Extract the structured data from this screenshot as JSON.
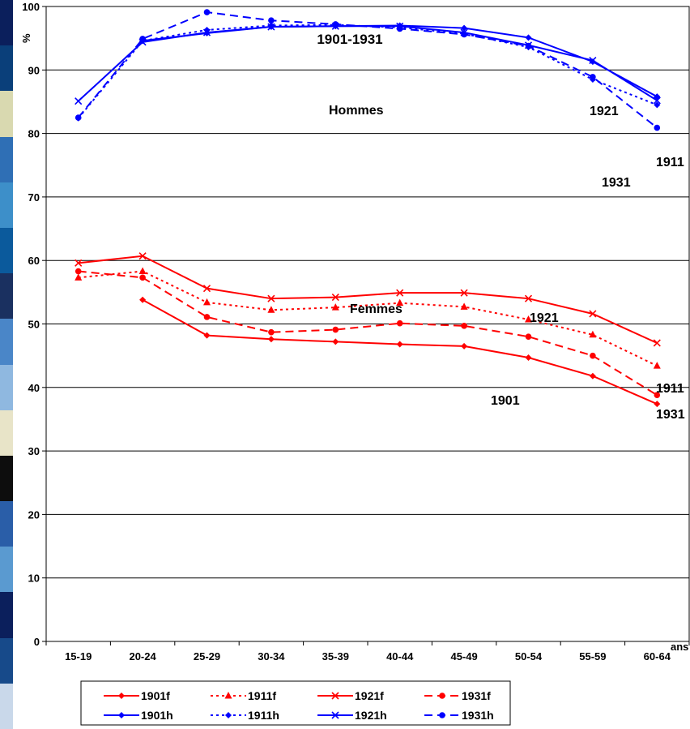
{
  "chart_data": {
    "type": "line",
    "title": "1901-1931",
    "ylabel": "%",
    "xlabel": "ans",
    "ylim": [
      0,
      100
    ],
    "yticks": [
      0,
      10,
      20,
      30,
      40,
      50,
      60,
      70,
      80,
      90,
      100
    ],
    "grid": true,
    "legend_position": "bottom",
    "categories": [
      "15-19",
      "20-24",
      "25-29",
      "30-34",
      "35-39",
      "40-44",
      "45-49",
      "50-54",
      "55-59",
      "60-64"
    ],
    "annotations": {
      "hommes": "Hommes",
      "femmes": "Femmes",
      "h1921": "1921",
      "h1911": "1911",
      "h1931": "1931",
      "f1921": "1921",
      "f1911": "1911",
      "f1931": "1931",
      "f1901": "1901"
    },
    "series": [
      {
        "name": "1901f",
        "color": "#ff0000",
        "dash": "solid",
        "marker": "diamond",
        "values": [
          null,
          53.8,
          48.2,
          47.6,
          47.2,
          46.8,
          46.5,
          44.7,
          41.8,
          37.4
        ]
      },
      {
        "name": "1911f",
        "color": "#ff0000",
        "dash": "dot",
        "marker": "triangle",
        "values": [
          57.3,
          58.3,
          53.4,
          52.2,
          52.6,
          53.3,
          52.7,
          50.7,
          48.3,
          43.4
        ]
      },
      {
        "name": "1921f",
        "color": "#ff0000",
        "dash": "solid",
        "marker": "x",
        "values": [
          59.6,
          60.7,
          55.6,
          54.0,
          54.2,
          54.9,
          54.9,
          54.0,
          51.6,
          47.0
        ]
      },
      {
        "name": "1931f",
        "color": "#ff0000",
        "dash": "dash",
        "marker": "circle",
        "values": [
          58.3,
          57.3,
          51.1,
          48.7,
          49.1,
          50.1,
          49.7,
          48.0,
          45.0,
          38.8
        ]
      },
      {
        "name": "1901h",
        "color": "#0000ff",
        "dash": "solid",
        "marker": "diamond",
        "values": [
          null,
          94.6,
          95.8,
          96.8,
          96.9,
          97.0,
          96.6,
          95.1,
          91.3,
          85.8
        ]
      },
      {
        "name": "1911h",
        "color": "#0000ff",
        "dash": "dot",
        "marker": "diamond",
        "values": [
          82.4,
          94.6,
          96.3,
          97.0,
          97.1,
          96.7,
          95.7,
          93.6,
          88.5,
          84.5
        ]
      },
      {
        "name": "1921h",
        "color": "#0000ff",
        "dash": "solid",
        "marker": "x",
        "values": [
          85.1,
          94.4,
          95.9,
          96.8,
          96.9,
          96.9,
          95.9,
          93.9,
          91.5,
          85.2
        ]
      },
      {
        "name": "1931h",
        "color": "#0000ff",
        "dash": "dash",
        "marker": "circle",
        "values": [
          82.5,
          94.9,
          99.1,
          97.8,
          97.2,
          96.5,
          95.6,
          93.8,
          88.9,
          80.9
        ]
      }
    ]
  }
}
